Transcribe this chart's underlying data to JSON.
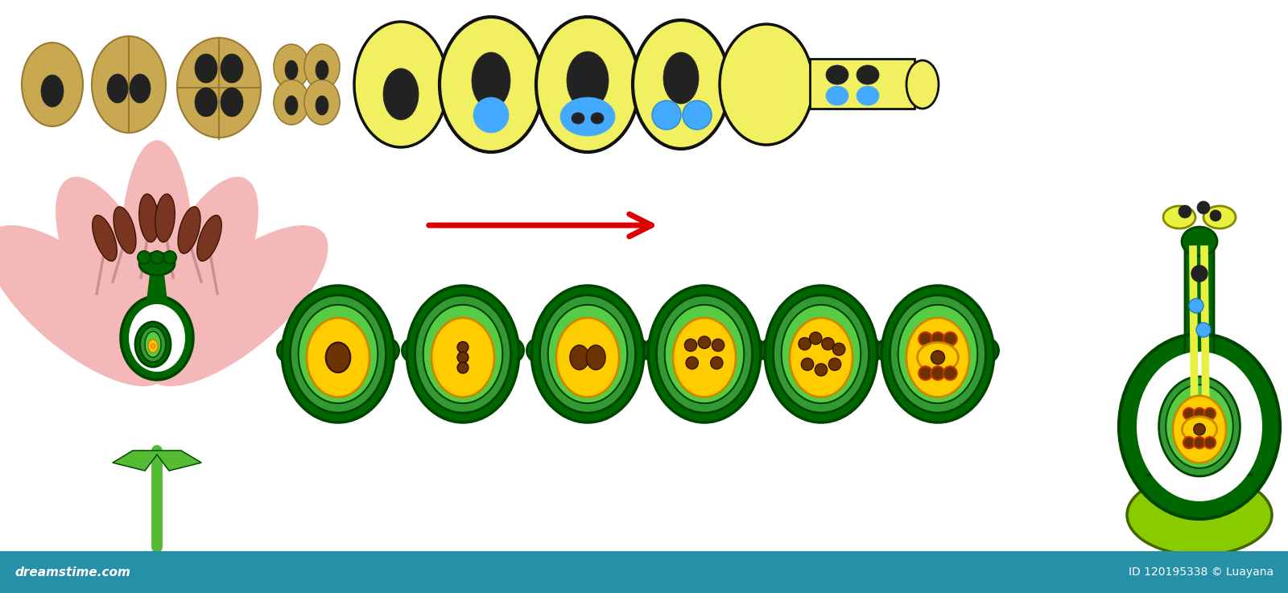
{
  "bg_color": "#ffffff",
  "bottom_bar_color": "#2590a8",
  "tan": "#c8a850",
  "tan_edge": "#9a7a30",
  "yellow": "#f0f060",
  "yellow_edge": "#111111",
  "blk": "#222222",
  "blu": "#44aaff",
  "dg": "#006600",
  "dg2": "#004400",
  "mg": "#339933",
  "lg": "#55cc44",
  "yellow_ovule": "#ffcc00",
  "brn": "#6b3300",
  "org": "#dd7700",
  "rorg": "#cc3300",
  "petal_pink": "#f4b8b8",
  "stamen_pink": "#c89090",
  "anther_brown": "#7a3520",
  "stem_green": "#44aa44",
  "dark_stem": "#006600",
  "sepal_green": "#55bb33",
  "arrow_red": "#dd0000",
  "pistil_dg": "#005500",
  "pistil_lg": "#88cc00",
  "pistil_yellow": "#e8f040"
}
